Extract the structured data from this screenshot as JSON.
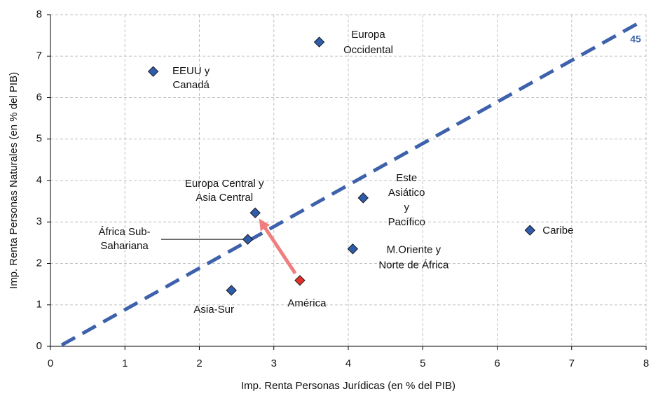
{
  "chart_data": {
    "type": "scatter",
    "x_label": "Imp. Renta Personas Jurídicas (en % del PIB)",
    "y_label": "Imp. Renta Personas Naturales (en % del PIB)",
    "xlim": [
      0,
      8
    ],
    "ylim": [
      0,
      8
    ],
    "xticks": [
      0,
      1,
      2,
      3,
      4,
      5,
      6,
      7,
      8
    ],
    "yticks": [
      0,
      1,
      2,
      3,
      4,
      5,
      6,
      7,
      8
    ],
    "grid": true,
    "points": [
      {
        "label": [
          "EEUU y",
          "Canadá"
        ],
        "x": 1.38,
        "y": 6.63,
        "color": "#2f5cab"
      },
      {
        "label": [
          "Europa",
          "Occidental"
        ],
        "x": 3.61,
        "y": 7.34,
        "color": "#2f5cab"
      },
      {
        "label": [
          "Europa Central y",
          "Asia Central"
        ],
        "x": 2.75,
        "y": 3.22,
        "color": "#2f5cab"
      },
      {
        "label": [
          "África Sub-",
          "Sahariana"
        ],
        "x": 2.65,
        "y": 2.58,
        "color": "#2f5cab"
      },
      {
        "label": [
          "Asia-Sur"
        ],
        "x": 2.43,
        "y": 1.35,
        "color": "#2f5cab"
      },
      {
        "label": [
          "América"
        ],
        "x": 3.35,
        "y": 1.59,
        "color": "#e0302a"
      },
      {
        "label": [
          "Este",
          "Asiático",
          "y",
          "Pacífico"
        ],
        "x": 4.2,
        "y": 3.58,
        "color": "#2f5cab"
      },
      {
        "label": [
          "M.Oriente y",
          "Norte de África"
        ],
        "x": 4.06,
        "y": 2.35,
        "color": "#2f5cab"
      },
      {
        "label": [
          "Caribe"
        ],
        "x": 6.44,
        "y": 2.8,
        "color": "#2f5cab"
      }
    ],
    "reference_line": {
      "label": "45",
      "x": [
        0.15,
        7.95
      ],
      "y": [
        0.03,
        7.85
      ],
      "color": "#3d62ab"
    }
  }
}
